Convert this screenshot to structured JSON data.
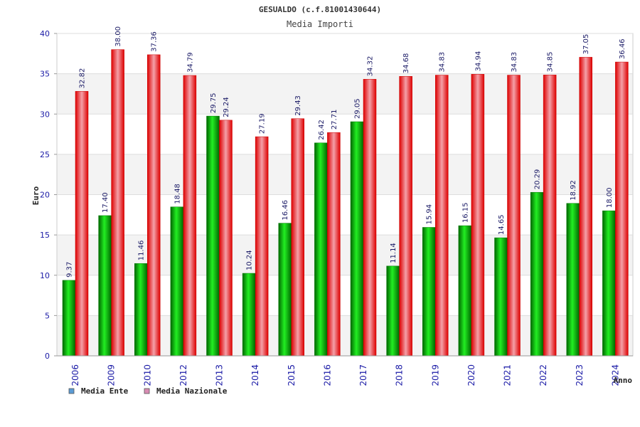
{
  "chart_data": {
    "type": "bar",
    "title": "GESUALDO (c.f.81001430644)",
    "subtitle": "Media Importi",
    "xlabel": "Anno",
    "ylabel": "Euro",
    "ylim": [
      0,
      40
    ],
    "yticks": [
      0,
      5,
      10,
      15,
      20,
      25,
      30,
      35,
      40
    ],
    "grid": true,
    "legend_position": "bottom-left",
    "categories": [
      "2006",
      "2009",
      "2010",
      "2012",
      "2013",
      "2014",
      "2015",
      "2016",
      "2017",
      "2018",
      "2019",
      "2020",
      "2021",
      "2022",
      "2023",
      "2024"
    ],
    "series": [
      {
        "name": "Media Ente",
        "color": "#00aa00",
        "legend_color": "#5b9bd5",
        "values": [
          9.37,
          17.4,
          11.46,
          18.48,
          29.75,
          10.24,
          16.46,
          26.42,
          29.05,
          11.14,
          15.94,
          16.15,
          14.65,
          20.29,
          18.92,
          18.0
        ],
        "labels": [
          "9.37",
          "17.40",
          "11.46",
          "18.48",
          "29.75",
          "10.24",
          "16.46",
          "26.42",
          "29.05",
          "11.14",
          "15.94",
          "16.15",
          "14.65",
          "20.29",
          "18.92",
          "18.00"
        ]
      },
      {
        "name": "Media Nazionale",
        "color": "#ee1111",
        "legend_color": "#d98cb3",
        "values": [
          32.82,
          38.0,
          37.36,
          34.79,
          29.24,
          27.19,
          29.43,
          27.71,
          34.32,
          34.68,
          34.83,
          34.94,
          34.83,
          34.85,
          37.05,
          36.46
        ],
        "labels": [
          "32.82",
          "38.00",
          "37.36",
          "34.79",
          "29.24",
          "27.19",
          "29.43",
          "27.71",
          "34.32",
          "34.68",
          "34.83",
          "34.94",
          "34.83",
          "34.85",
          "37.05",
          "36.46"
        ]
      }
    ]
  }
}
